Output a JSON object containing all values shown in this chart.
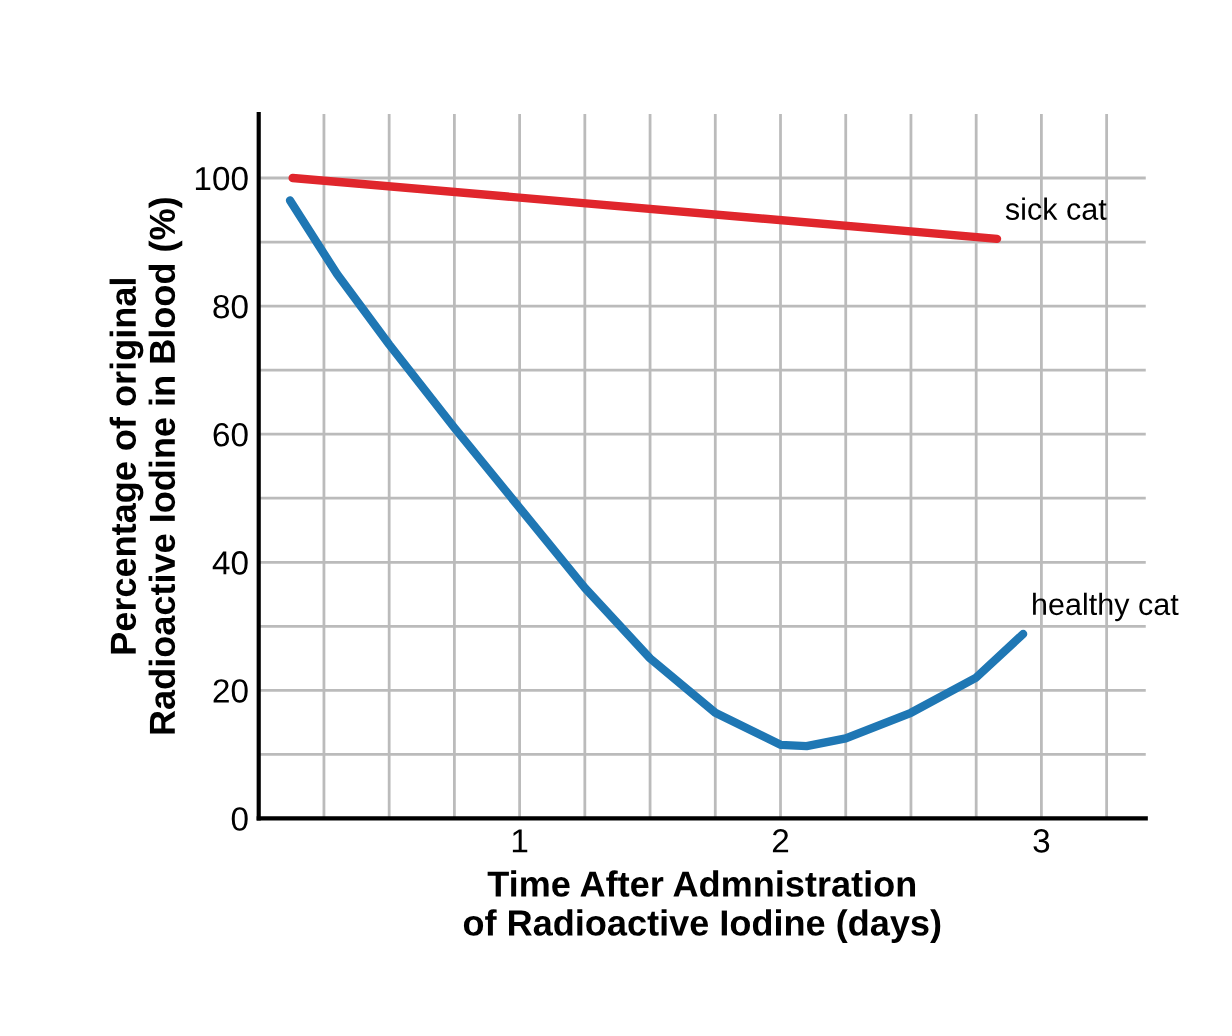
{
  "chart_data": {
    "type": "line",
    "xlabel": "Time After Admnistration\nof Radioactive Iodine (days)",
    "ylabel": "Percentage of original\nRadioactive Iodine in Blood (%)",
    "series": [
      {
        "name": "sick cat",
        "color": "#e0262c",
        "x": [
          0.13,
          2.83
        ],
        "values": [
          100,
          90.5
        ]
      },
      {
        "name": "healthy cat",
        "color": "#1f77b4",
        "x": [
          0.12,
          0.3,
          0.5,
          0.75,
          1.0,
          1.25,
          1.5,
          1.75,
          2.0,
          2.1,
          2.25,
          2.5,
          2.75,
          2.93
        ],
        "values": [
          96.5,
          85,
          74,
          61,
          48.5,
          36,
          25,
          16.5,
          11.5,
          11.3,
          12.5,
          16.5,
          22,
          28.8
        ]
      }
    ],
    "xlim": [
      0,
      3.4
    ],
    "ylim": [
      0,
      110
    ],
    "xticks": [
      {
        "value": 0.25,
        "label": null
      },
      {
        "value": 0.5,
        "label": null
      },
      {
        "value": 0.75,
        "label": null
      },
      1,
      {
        "value": 1.25,
        "label": null
      },
      {
        "value": 1.5,
        "label": null
      },
      {
        "value": 1.75,
        "label": null
      },
      2,
      {
        "value": 2.25,
        "label": null
      },
      {
        "value": 2.5,
        "label": null
      },
      {
        "value": 2.75,
        "label": null
      },
      3,
      {
        "value": 3.25,
        "label": null
      }
    ],
    "yticks": [
      0,
      {
        "value": 10,
        "label": null
      },
      20,
      {
        "value": 30,
        "label": null
      },
      40,
      {
        "value": 50,
        "label": null
      },
      60,
      {
        "value": 70,
        "label": null
      },
      80,
      {
        "value": 90,
        "label": null
      },
      100
    ],
    "grid": true,
    "legend": false,
    "marker": "none",
    "line_style": "solid"
  }
}
